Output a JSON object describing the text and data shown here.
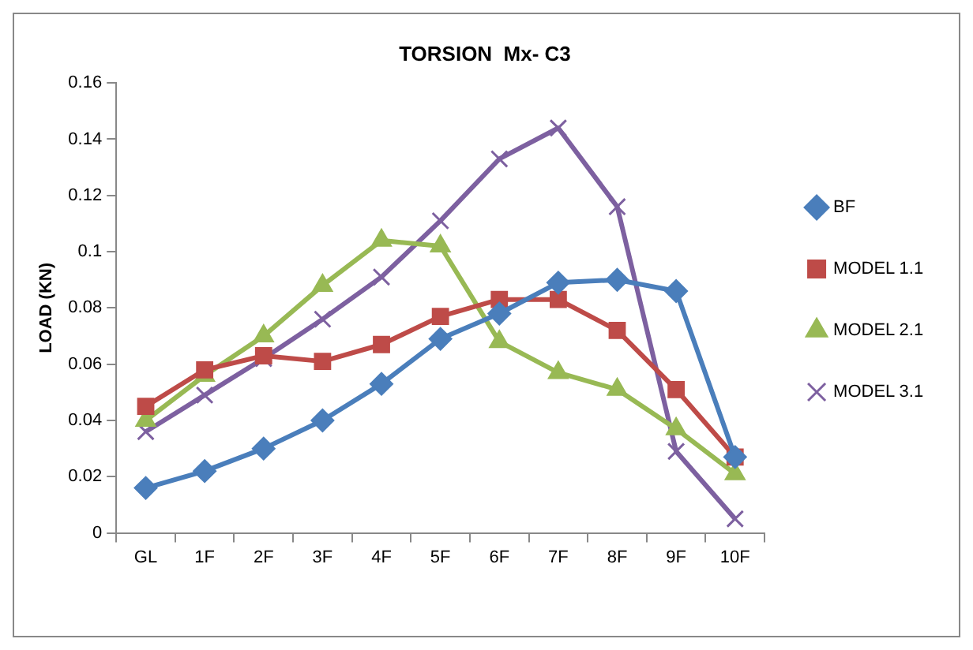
{
  "chart_data": {
    "type": "line",
    "title": "TORSION  Mx- C3",
    "ylabel": "LOAD (KN)",
    "categories": [
      "GL",
      "1F",
      "2F",
      "3F",
      "4F",
      "5F",
      "6F",
      "7F",
      "8F",
      "9F",
      "10F"
    ],
    "ylim": [
      0,
      0.16
    ],
    "yticks": [
      0,
      0.02,
      0.04,
      0.06,
      0.08,
      0.1,
      0.12,
      0.14,
      0.16
    ],
    "grid": false,
    "legend": "right",
    "series": [
      {
        "name": "BF",
        "color": "#4a7ebb",
        "marker": "diamond",
        "values": [
          0.016,
          0.022,
          0.03,
          0.04,
          0.053,
          0.069,
          0.078,
          0.089,
          0.09,
          0.086,
          0.027
        ]
      },
      {
        "name": "MODEL 1.1",
        "color": "#be4b48",
        "marker": "square",
        "values": [
          0.045,
          0.058,
          0.063,
          0.061,
          0.067,
          0.077,
          0.083,
          0.083,
          0.072,
          0.051,
          0.027
        ]
      },
      {
        "name": "MODEL 2.1",
        "color": "#98b954",
        "marker": "triangle",
        "values": [
          0.04,
          0.056,
          0.07,
          0.088,
          0.104,
          0.102,
          0.068,
          0.057,
          0.051,
          0.037,
          0.021
        ]
      },
      {
        "name": "MODEL 3.1",
        "color": "#7d60a0",
        "marker": "cross",
        "values": [
          0.036,
          0.049,
          0.062,
          0.076,
          0.091,
          0.111,
          0.133,
          0.144,
          0.116,
          0.029,
          0.005
        ]
      }
    ]
  }
}
